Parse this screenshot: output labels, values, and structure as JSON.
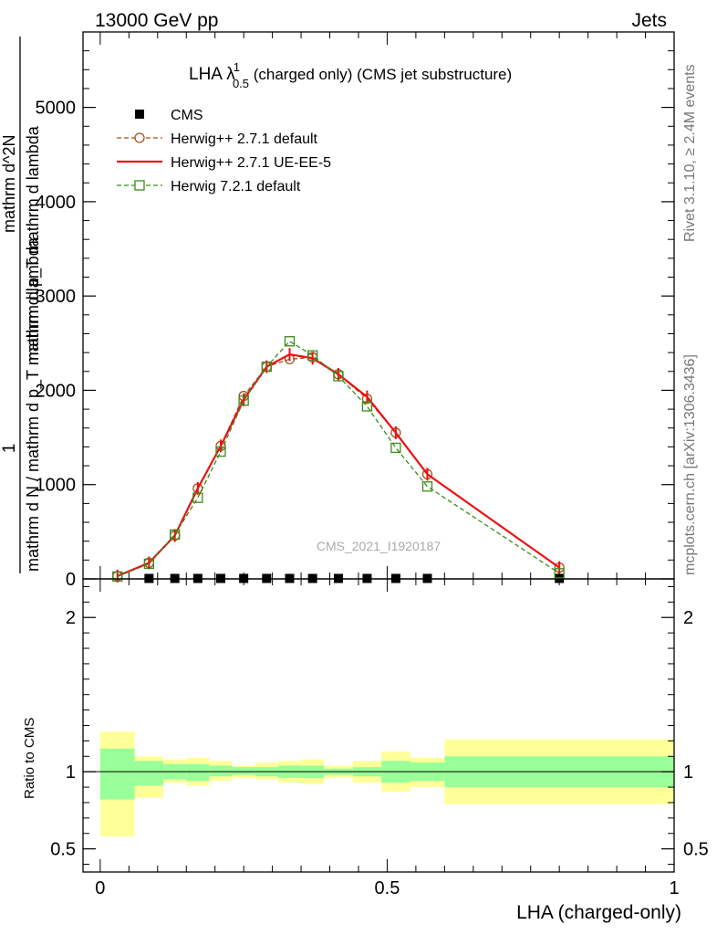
{
  "header": {
    "left": "13000 GeV pp",
    "right": "Jets"
  },
  "side": {
    "rivet": "Rivet 3.1.10, ≥ 2.4M events",
    "mcplots": "mcplots.cern.ch [arXiv:1306.3436]"
  },
  "plot_title": {
    "main": "LHA λ",
    "sup": "1",
    "sub": "0.5",
    "rest": " (charged only) (CMS jet substructure)"
  },
  "watermark": "CMS_2021_I1920187",
  "colors": {
    "cms": "#000000",
    "herwig_default": "#a0521d",
    "herwig_ueee5": "#ee1111",
    "herwig721": "#3a8a1a",
    "band_inner": "#99ff99",
    "band_outer": "#ffff99"
  },
  "chart_data": [
    {
      "type": "line",
      "panel": "main",
      "ylabel": {
        "frac_num": "1",
        "frac_den": "mathrm d N / mathrm d p_T mathrm d lambda",
        "frac2_num": "mathrm d^2N",
        "frac2_den": "mathrm d p_T mathrm d lambda"
      },
      "ylim": [
        0,
        5800
      ],
      "xlim": [
        -0.03,
        1.0
      ],
      "y_ticks": [
        {
          "v": 0,
          "label": "0"
        },
        {
          "v": 1000,
          "label": "1000"
        },
        {
          "v": 2000,
          "label": "2000"
        },
        {
          "v": 3000,
          "label": "3000"
        },
        {
          "v": 4000,
          "label": "4000"
        },
        {
          "v": 5000,
          "label": "5000"
        }
      ],
      "legend": [
        {
          "key": "cms",
          "label": "CMS"
        },
        {
          "key": "herwig_default",
          "label": "Herwig++ 2.7.1 default"
        },
        {
          "key": "herwig_ueee5",
          "label": "Herwig++ 2.7.1 UE-EE-5"
        },
        {
          "key": "herwig721",
          "label": "Herwig 7.2.1 default"
        }
      ],
      "series": [
        {
          "key": "cms",
          "name": "CMS",
          "x": [
            0.085,
            0.13,
            0.17,
            0.21,
            0.25,
            0.29,
            0.33,
            0.37,
            0.415,
            0.465,
            0.515,
            0.57,
            0.8
          ],
          "y": [
            5,
            5,
            5,
            5,
            5,
            5,
            5,
            5,
            5,
            5,
            5,
            5,
            5
          ]
        },
        {
          "key": "herwig_default",
          "name": "Herwig++ 2.7.1 default",
          "x": [
            0.03,
            0.085,
            0.13,
            0.17,
            0.21,
            0.25,
            0.29,
            0.33,
            0.37,
            0.415,
            0.465,
            0.515,
            0.57,
            0.8
          ],
          "y": [
            30,
            170,
            460,
            960,
            1410,
            1940,
            2250,
            2330,
            2350,
            2170,
            1910,
            1550,
            1110,
            120
          ]
        },
        {
          "key": "herwig_ueee5",
          "name": "Herwig++ 2.7.1 UE-EE-5",
          "x": [
            0.03,
            0.085,
            0.13,
            0.17,
            0.21,
            0.25,
            0.29,
            0.33,
            0.37,
            0.415,
            0.465,
            0.515,
            0.57,
            0.8
          ],
          "y": [
            30,
            170,
            460,
            960,
            1410,
            1900,
            2250,
            2380,
            2340,
            2170,
            1930,
            1550,
            1110,
            120
          ]
        },
        {
          "key": "herwig721",
          "name": "Herwig 7.2.1 default",
          "x": [
            0.03,
            0.085,
            0.13,
            0.17,
            0.21,
            0.25,
            0.29,
            0.33,
            0.37,
            0.415,
            0.465,
            0.515,
            0.57,
            0.8
          ],
          "y": [
            25,
            160,
            470,
            860,
            1350,
            1890,
            2250,
            2520,
            2370,
            2150,
            1830,
            1390,
            980,
            60
          ]
        }
      ]
    },
    {
      "type": "area",
      "panel": "ratio",
      "ylabel": "Ratio to CMS",
      "xlabel": "LHA (charged-only)",
      "ylim": [
        0.35,
        2.25
      ],
      "xlim": [
        -0.03,
        1.0
      ],
      "y_ticks": [
        {
          "v": 0.5,
          "label": "0.5"
        },
        {
          "v": 1,
          "label": "1"
        },
        {
          "v": 2,
          "label": "2"
        }
      ],
      "x_ticks": [
        {
          "v": 0,
          "label": "0"
        },
        {
          "v": 0.5,
          "label": "0.5"
        },
        {
          "v": 1,
          "label": "1"
        }
      ],
      "bins": [
        {
          "x0": 0.0,
          "x1": 0.06,
          "inner": [
            0.82,
            1.15
          ],
          "outer": [
            0.58,
            1.26
          ]
        },
        {
          "x0": 0.06,
          "x1": 0.11,
          "inner": [
            0.91,
            1.07
          ],
          "outer": [
            0.83,
            1.1
          ]
        },
        {
          "x0": 0.11,
          "x1": 0.15,
          "inner": [
            0.95,
            1.05
          ],
          "outer": [
            0.93,
            1.08
          ]
        },
        {
          "x0": 0.15,
          "x1": 0.19,
          "inner": [
            0.94,
            1.05
          ],
          "outer": [
            0.91,
            1.09
          ]
        },
        {
          "x0": 0.19,
          "x1": 0.23,
          "inner": [
            0.97,
            1.04
          ],
          "outer": [
            0.94,
            1.07
          ]
        },
        {
          "x0": 0.23,
          "x1": 0.27,
          "inner": [
            0.98,
            1.03
          ],
          "outer": [
            0.96,
            1.04
          ]
        },
        {
          "x0": 0.27,
          "x1": 0.31,
          "inner": [
            0.97,
            1.03
          ],
          "outer": [
            0.95,
            1.06
          ]
        },
        {
          "x0": 0.31,
          "x1": 0.35,
          "inner": [
            0.96,
            1.04
          ],
          "outer": [
            0.93,
            1.07
          ]
        },
        {
          "x0": 0.35,
          "x1": 0.39,
          "inner": [
            0.96,
            1.04
          ],
          "outer": [
            0.92,
            1.08
          ]
        },
        {
          "x0": 0.39,
          "x1": 0.44,
          "inner": [
            0.98,
            1.02
          ],
          "outer": [
            0.96,
            1.04
          ]
        },
        {
          "x0": 0.44,
          "x1": 0.49,
          "inner": [
            0.97,
            1.03
          ],
          "outer": [
            0.93,
            1.07
          ]
        },
        {
          "x0": 0.49,
          "x1": 0.54,
          "inner": [
            0.93,
            1.07
          ],
          "outer": [
            0.87,
            1.13
          ]
        },
        {
          "x0": 0.54,
          "x1": 0.6,
          "inner": [
            0.94,
            1.06
          ],
          "outer": [
            0.9,
            1.09
          ]
        },
        {
          "x0": 0.6,
          "x1": 1.0,
          "inner": [
            0.9,
            1.1
          ],
          "outer": [
            0.79,
            1.21
          ]
        }
      ]
    }
  ]
}
